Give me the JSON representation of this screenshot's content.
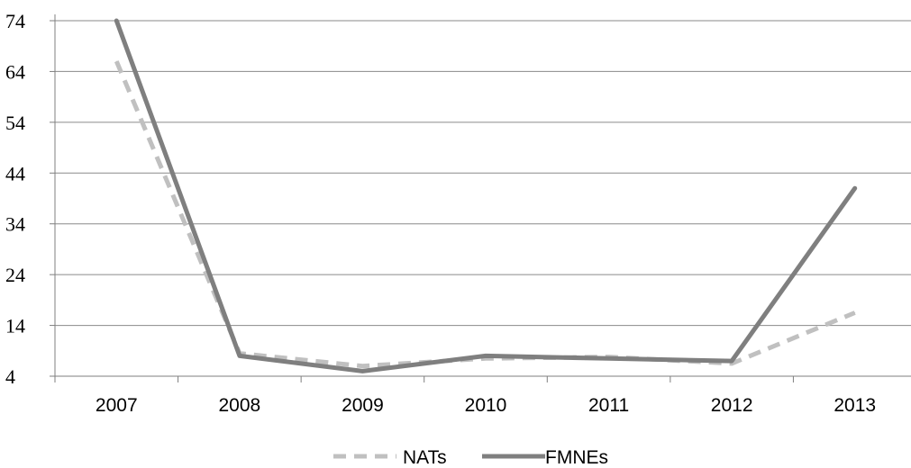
{
  "chart_data": {
    "type": "line",
    "categories": [
      "2007",
      "2008",
      "2009",
      "2010",
      "2011",
      "2012",
      "2013"
    ],
    "series": [
      {
        "name": "NATs",
        "values": [
          66,
          8.5,
          6,
          7.5,
          7.8,
          6.5,
          16.5
        ],
        "color": "#c0c0c0",
        "style": "dashed"
      },
      {
        "name": "FMNEs",
        "values": [
          74,
          8,
          5,
          8,
          7.5,
          7,
          41
        ],
        "color": "#7f7f7f",
        "style": "solid"
      }
    ],
    "yticks": [
      "4",
      "14",
      "24",
      "34",
      "44",
      "54",
      "64",
      "74"
    ],
    "ylim": [
      4,
      74
    ],
    "grid": true,
    "legend": "bottom-center"
  }
}
